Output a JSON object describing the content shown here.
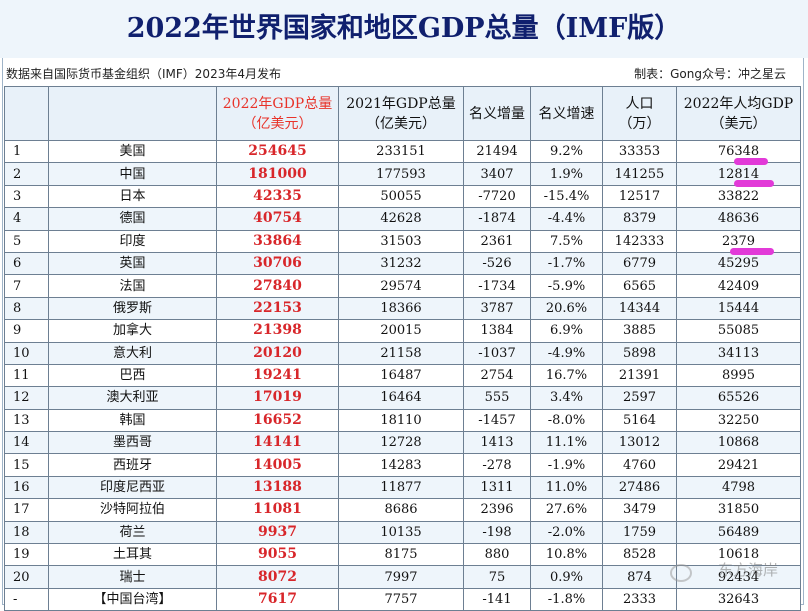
{
  "title": "2022年世界国家和地区GDP总量（IMF版）",
  "source_note": "数据来自国际货币基金组织（IMF）2023年4月发布",
  "credit_note": "制表：Gong众号：冲之星云",
  "headers": {
    "rank": "",
    "region": "",
    "gdp2022_l1": "2022年GDP总量",
    "gdp2022_l2": "（亿美元）",
    "gdp2021_l1": "2021年GDP总量",
    "gdp2021_l2": "（亿美元）",
    "nominal_increase": "名义增量",
    "nominal_growth": "名义增速",
    "population_l1": "人口",
    "population_l2": "（万）",
    "per_capita_l1": "2022年人均GDP",
    "per_capita_l2": "（美元）"
  },
  "rows": [
    {
      "rank": "1",
      "region": "美国",
      "gdp2022": "254645",
      "gdp2021": "233151",
      "increase": "21494",
      "growth": "9.2%",
      "population": "33353",
      "per_capita": "76348"
    },
    {
      "rank": "2",
      "region": "中国",
      "gdp2022": "181000",
      "gdp2021": "177593",
      "increase": "3407",
      "growth": "1.9%",
      "population": "141255",
      "per_capita": "12814"
    },
    {
      "rank": "3",
      "region": "日本",
      "gdp2022": "42335",
      "gdp2021": "50055",
      "increase": "-7720",
      "growth": "-15.4%",
      "population": "12517",
      "per_capita": "33822"
    },
    {
      "rank": "4",
      "region": "德国",
      "gdp2022": "40754",
      "gdp2021": "42628",
      "increase": "-1874",
      "growth": "-4.4%",
      "population": "8379",
      "per_capita": "48636"
    },
    {
      "rank": "5",
      "region": "印度",
      "gdp2022": "33864",
      "gdp2021": "31503",
      "increase": "2361",
      "growth": "7.5%",
      "population": "142333",
      "per_capita": "2379"
    },
    {
      "rank": "6",
      "region": "英国",
      "gdp2022": "30706",
      "gdp2021": "31232",
      "increase": "-526",
      "growth": "-1.7%",
      "population": "6779",
      "per_capita": "45295"
    },
    {
      "rank": "7",
      "region": "法国",
      "gdp2022": "27840",
      "gdp2021": "29574",
      "increase": "-1734",
      "growth": "-5.9%",
      "population": "6565",
      "per_capita": "42409"
    },
    {
      "rank": "8",
      "region": "俄罗斯",
      "gdp2022": "22153",
      "gdp2021": "18366",
      "increase": "3787",
      "growth": "20.6%",
      "population": "14344",
      "per_capita": "15444"
    },
    {
      "rank": "9",
      "region": "加拿大",
      "gdp2022": "21398",
      "gdp2021": "20015",
      "increase": "1384",
      "growth": "6.9%",
      "population": "3885",
      "per_capita": "55085"
    },
    {
      "rank": "10",
      "region": "意大利",
      "gdp2022": "20120",
      "gdp2021": "21158",
      "increase": "-1037",
      "growth": "-4.9%",
      "population": "5898",
      "per_capita": "34113"
    },
    {
      "rank": "11",
      "region": "巴西",
      "gdp2022": "19241",
      "gdp2021": "16487",
      "increase": "2754",
      "growth": "16.7%",
      "population": "21391",
      "per_capita": "8995"
    },
    {
      "rank": "12",
      "region": "澳大利亚",
      "gdp2022": "17019",
      "gdp2021": "16464",
      "increase": "555",
      "growth": "3.4%",
      "population": "2597",
      "per_capita": "65526"
    },
    {
      "rank": "13",
      "region": "韩国",
      "gdp2022": "16652",
      "gdp2021": "18110",
      "increase": "-1457",
      "growth": "-8.0%",
      "population": "5164",
      "per_capita": "32250"
    },
    {
      "rank": "14",
      "region": "墨西哥",
      "gdp2022": "14141",
      "gdp2021": "12728",
      "increase": "1413",
      "growth": "11.1%",
      "population": "13012",
      "per_capita": "10868"
    },
    {
      "rank": "15",
      "region": "西班牙",
      "gdp2022": "14005",
      "gdp2021": "14283",
      "increase": "-278",
      "growth": "-1.9%",
      "population": "4760",
      "per_capita": "29421"
    },
    {
      "rank": "16",
      "region": "印度尼西亚",
      "gdp2022": "13188",
      "gdp2021": "11877",
      "increase": "1311",
      "growth": "11.0%",
      "population": "27486",
      "per_capita": "4798"
    },
    {
      "rank": "17",
      "region": "沙特阿拉伯",
      "gdp2022": "11081",
      "gdp2021": "8686",
      "increase": "2396",
      "growth": "27.6%",
      "population": "3479",
      "per_capita": "31850"
    },
    {
      "rank": "18",
      "region": "荷兰",
      "gdp2022": "9937",
      "gdp2021": "10135",
      "increase": "-198",
      "growth": "-2.0%",
      "population": "1759",
      "per_capita": "56489"
    },
    {
      "rank": "19",
      "region": "土耳其",
      "gdp2022": "9055",
      "gdp2021": "8175",
      "increase": "880",
      "growth": "10.8%",
      "population": "8528",
      "per_capita": "10618"
    },
    {
      "rank": "20",
      "region": "瑞士",
      "gdp2022": "8072",
      "gdp2021": "7997",
      "increase": "75",
      "growth": "0.9%",
      "population": "874",
      "per_capita": "92434"
    },
    {
      "rank": "-",
      "region": "【中国台湾】",
      "gdp2022": "7617",
      "gdp2021": "7757",
      "increase": "-141",
      "growth": "-1.8%",
      "population": "2333",
      "per_capita": "32643"
    }
  ],
  "watermark": "东方海岸",
  "colors": {
    "title": "#10206e",
    "highlight_red": "#e8332a",
    "annotation_mark": "#e23ad8"
  }
}
